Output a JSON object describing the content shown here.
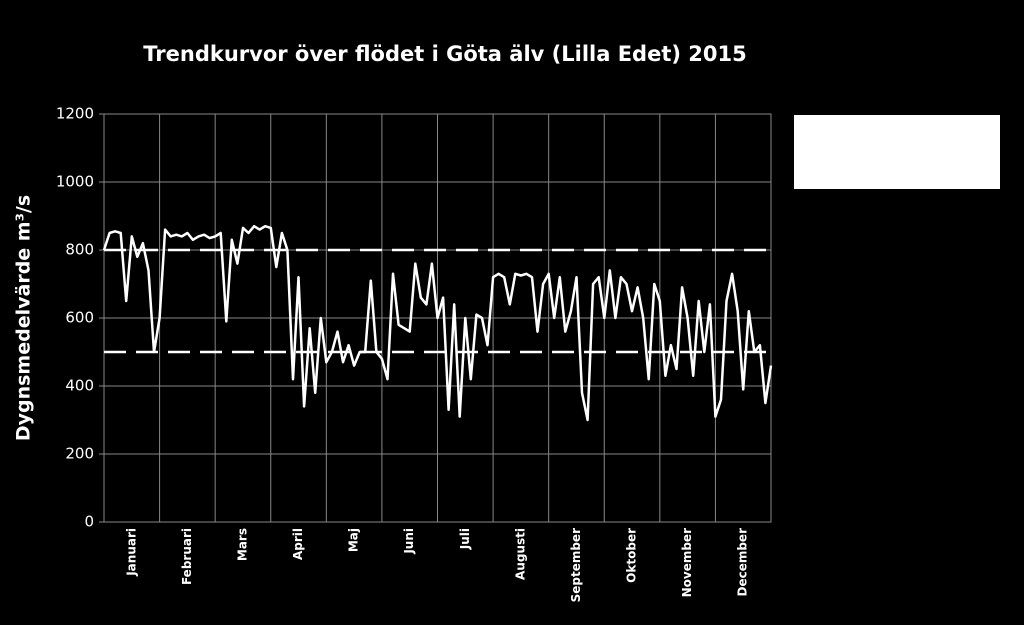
{
  "chart_data": {
    "type": "line",
    "title": "Trendkurvor över flödet i Göta älv (Lilla Edet) 2015",
    "y_label": "Dygnsmedelvärde m³/s",
    "categories": [
      "Januari",
      "Februari",
      "Mars",
      "April",
      "Maj",
      "Juni",
      "Juli",
      "Augusti",
      "September",
      "Oktober",
      "November",
      "December"
    ],
    "x": [
      0,
      0.1,
      0.2,
      0.3,
      0.4,
      0.5,
      0.6,
      0.7,
      0.8,
      0.9,
      1,
      1.1,
      1.2,
      1.3,
      1.4,
      1.5,
      1.6,
      1.7,
      1.8,
      1.9,
      2,
      2.1,
      2.2,
      2.3,
      2.4,
      2.5,
      2.6,
      2.7,
      2.8,
      2.9,
      3,
      3.1,
      3.2,
      3.3,
      3.4,
      3.5,
      3.6,
      3.7,
      3.8,
      3.9,
      4,
      4.1,
      4.2,
      4.3,
      4.4,
      4.5,
      4.6,
      4.7,
      4.8,
      4.9,
      5,
      5.1,
      5.2,
      5.3,
      5.4,
      5.5,
      5.6,
      5.7,
      5.8,
      5.9,
      6,
      6.1,
      6.2,
      6.3,
      6.4,
      6.5,
      6.6,
      6.7,
      6.8,
      6.9,
      7,
      7.1,
      7.2,
      7.3,
      7.4,
      7.5,
      7.6,
      7.7,
      7.8,
      7.9,
      8,
      8.1,
      8.2,
      8.3,
      8.4,
      8.5,
      8.6,
      8.7,
      8.8,
      8.9,
      9,
      9.1,
      9.2,
      9.3,
      9.4,
      9.5,
      9.6,
      9.7,
      9.8,
      9.9,
      10,
      10.1,
      10.2,
      10.3,
      10.4,
      10.5,
      10.6,
      10.7,
      10.8,
      10.9,
      11,
      11.1,
      11.2,
      11.3,
      11.4,
      11.5,
      11.6,
      11.7,
      11.8,
      11.9,
      12
    ],
    "values": [
      800,
      850,
      855,
      850,
      650,
      840,
      780,
      820,
      740,
      500,
      600,
      860,
      840,
      845,
      840,
      850,
      830,
      840,
      845,
      835,
      840,
      850,
      590,
      830,
      760,
      865,
      850,
      870,
      860,
      870,
      865,
      750,
      850,
      800,
      420,
      720,
      340,
      570,
      380,
      600,
      470,
      500,
      560,
      470,
      520,
      460,
      500,
      500,
      710,
      500,
      480,
      420,
      730,
      580,
      570,
      560,
      760,
      660,
      640,
      760,
      600,
      660,
      330,
      640,
      310,
      600,
      420,
      610,
      600,
      520,
      720,
      730,
      720,
      640,
      730,
      725,
      730,
      720,
      560,
      700,
      730,
      600,
      720,
      560,
      620,
      720,
      380,
      300,
      700,
      720,
      600,
      740,
      600,
      720,
      700,
      620,
      690,
      600,
      420,
      700,
      650,
      430,
      520,
      450,
      690,
      600,
      430,
      650,
      500,
      640,
      310,
      360,
      650,
      730,
      620,
      390,
      620,
      500,
      520,
      350,
      460
    ],
    "color": "#ffffff",
    "xlim": [
      0,
      12
    ],
    "ylim": [
      0,
      1200
    ],
    "yticks": [
      0,
      200,
      400,
      600,
      800,
      1000,
      1200
    ],
    "reference_lines": [
      800,
      500
    ],
    "grid": true
  }
}
